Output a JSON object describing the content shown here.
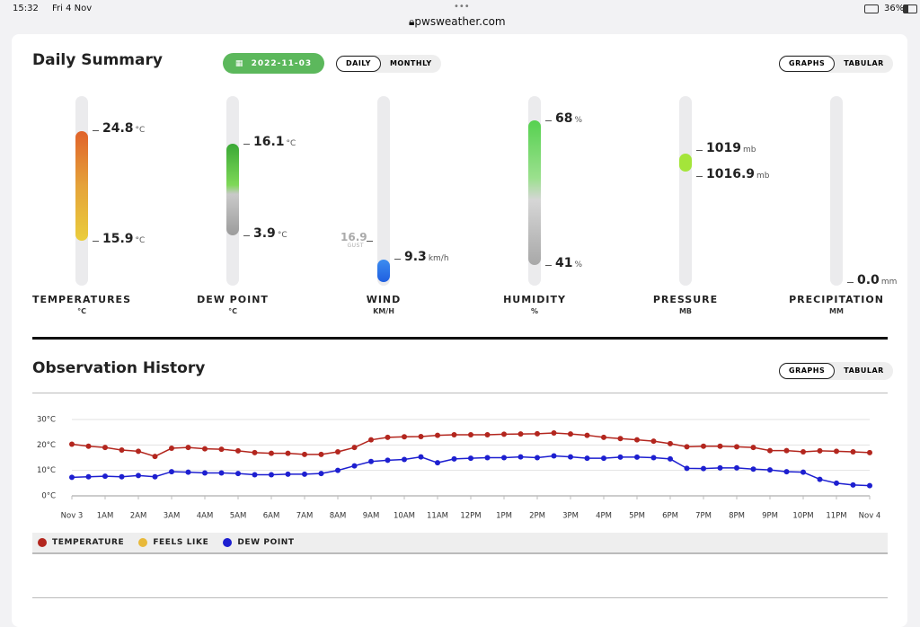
{
  "status_bar": {
    "time": "15:32",
    "date": "Fri 4 Nov",
    "url": "pwsweather.com",
    "battery": "36%"
  },
  "daily_summary": {
    "title": "Daily Summary",
    "date": "2022-11-03",
    "period_tabs": [
      "DAILY",
      "MONTHLY"
    ],
    "view_tabs": [
      "GRAPHS",
      "TABULAR"
    ],
    "gauges": [
      {
        "label": "TEMPERATURES",
        "unit": "°C",
        "high": "24.8",
        "high_unit": "°C",
        "low": "15.9",
        "low_unit": "°C"
      },
      {
        "label": "DEW POINT",
        "unit": "°C",
        "high": "16.1",
        "high_unit": "°C",
        "low": "3.9",
        "low_unit": "°C"
      },
      {
        "label": "WIND",
        "unit": "KM/H",
        "gust": "16.9",
        "gust_label": "GUST",
        "low": "9.3",
        "low_unit": "km/h"
      },
      {
        "label": "HUMIDITY",
        "unit": "%",
        "high": "68",
        "high_unit": "%",
        "low": "41",
        "low_unit": "%"
      },
      {
        "label": "PRESSURE",
        "unit": "MB",
        "high": "1019",
        "high_unit": "mb",
        "low": "1016.9",
        "low_unit": "mb"
      },
      {
        "label": "PRECIPITATION",
        "unit": "MM",
        "low": "0.0",
        "low_unit": "mm"
      }
    ]
  },
  "observation_history": {
    "title": "Observation History",
    "view_tabs": [
      "GRAPHS",
      "TABULAR"
    ],
    "chart_data": {
      "type": "line",
      "x": [
        0,
        0.5,
        1,
        1.5,
        2,
        2.5,
        3,
        3.5,
        4,
        4.5,
        5,
        5.5,
        6,
        6.5,
        7,
        7.5,
        8,
        8.5,
        9,
        9.5,
        10,
        10.5,
        11,
        11.5,
        12,
        12.5,
        13,
        13.5,
        14,
        14.5,
        15,
        15.5,
        16,
        16.5,
        17,
        17.5,
        18,
        18.5,
        19,
        19.5,
        20,
        20.5,
        21,
        21.5,
        22,
        22.5,
        23,
        23.5,
        24
      ],
      "series": [
        {
          "name": "TEMPERATURE",
          "color": "#b3261e",
          "values": [
            20.3,
            19.5,
            19,
            18,
            17.5,
            15.5,
            18.7,
            19,
            18.5,
            18.3,
            17.7,
            17,
            16.7,
            16.7,
            16.3,
            16.3,
            17.3,
            19,
            22,
            23,
            23.2,
            23.3,
            23.8,
            24,
            24,
            24,
            24.2,
            24.3,
            24.4,
            24.7,
            24.3,
            23.8,
            23,
            22.5,
            22,
            21.5,
            20.5,
            19.3,
            19.5,
            19.5,
            19.3,
            19,
            17.8,
            17.8,
            17.3,
            17.7,
            17.5,
            17.3,
            17
          ]
        },
        {
          "name": "FEELS LIKE",
          "color": "#e8b93a",
          "values": [
            null,
            null,
            null,
            null,
            null,
            null,
            null,
            null,
            null,
            null,
            null,
            null,
            null,
            null,
            null,
            null,
            null,
            null,
            null,
            null,
            null,
            null,
            null,
            null,
            null,
            null,
            null,
            null,
            null,
            null,
            null,
            null,
            null,
            null,
            null,
            null,
            null,
            null,
            null,
            null,
            null,
            null,
            null,
            null,
            null,
            null,
            null,
            null,
            null
          ]
        },
        {
          "name": "DEW POINT",
          "color": "#1d1fd0",
          "values": [
            7.3,
            7.5,
            7.7,
            7.5,
            8,
            7.5,
            9.5,
            9.3,
            9,
            9,
            8.8,
            8.3,
            8.3,
            8.5,
            8.5,
            8.8,
            10,
            11.8,
            13.5,
            14,
            14.3,
            15.3,
            13,
            14.5,
            14.8,
            15,
            15,
            15.3,
            15,
            15.7,
            15.3,
            14.8,
            14.8,
            15.2,
            15.2,
            15,
            14.5,
            10.8,
            10.7,
            11,
            11,
            10.5,
            10.2,
            9.5,
            9.3,
            6.5,
            5,
            4.3,
            4
          ]
        }
      ],
      "xlim": [
        0,
        24
      ],
      "xticks": [
        {
          "value": 0,
          "label": "Nov 3"
        },
        {
          "value": 1,
          "label": "1AM"
        },
        {
          "value": 2,
          "label": "2AM"
        },
        {
          "value": 3,
          "label": "3AM"
        },
        {
          "value": 4,
          "label": "4AM"
        },
        {
          "value": 5,
          "label": "5AM"
        },
        {
          "value": 6,
          "label": "6AM"
        },
        {
          "value": 7,
          "label": "7AM"
        },
        {
          "value": 8,
          "label": "8AM"
        },
        {
          "value": 9,
          "label": "9AM"
        },
        {
          "value": 10,
          "label": "10AM"
        },
        {
          "value": 11,
          "label": "11AM"
        },
        {
          "value": 12,
          "label": "12PM"
        },
        {
          "value": 13,
          "label": "1PM"
        },
        {
          "value": 14,
          "label": "2PM"
        },
        {
          "value": 15,
          "label": "3PM"
        },
        {
          "value": 16,
          "label": "4PM"
        },
        {
          "value": 17,
          "label": "5PM"
        },
        {
          "value": 18,
          "label": "6PM"
        },
        {
          "value": 19,
          "label": "7PM"
        },
        {
          "value": 20,
          "label": "8PM"
        },
        {
          "value": 21,
          "label": "9PM"
        },
        {
          "value": 22,
          "label": "10PM"
        },
        {
          "value": 23,
          "label": "11PM"
        },
        {
          "value": 24,
          "label": "Nov 4"
        }
      ],
      "ylim": [
        0,
        30
      ],
      "yticks": [
        {
          "value": 0,
          "label": "0°C"
        },
        {
          "value": 10,
          "label": "10°C"
        },
        {
          "value": 20,
          "label": "20°C"
        },
        {
          "value": 30,
          "label": "30°C"
        }
      ],
      "grid": true
    }
  }
}
